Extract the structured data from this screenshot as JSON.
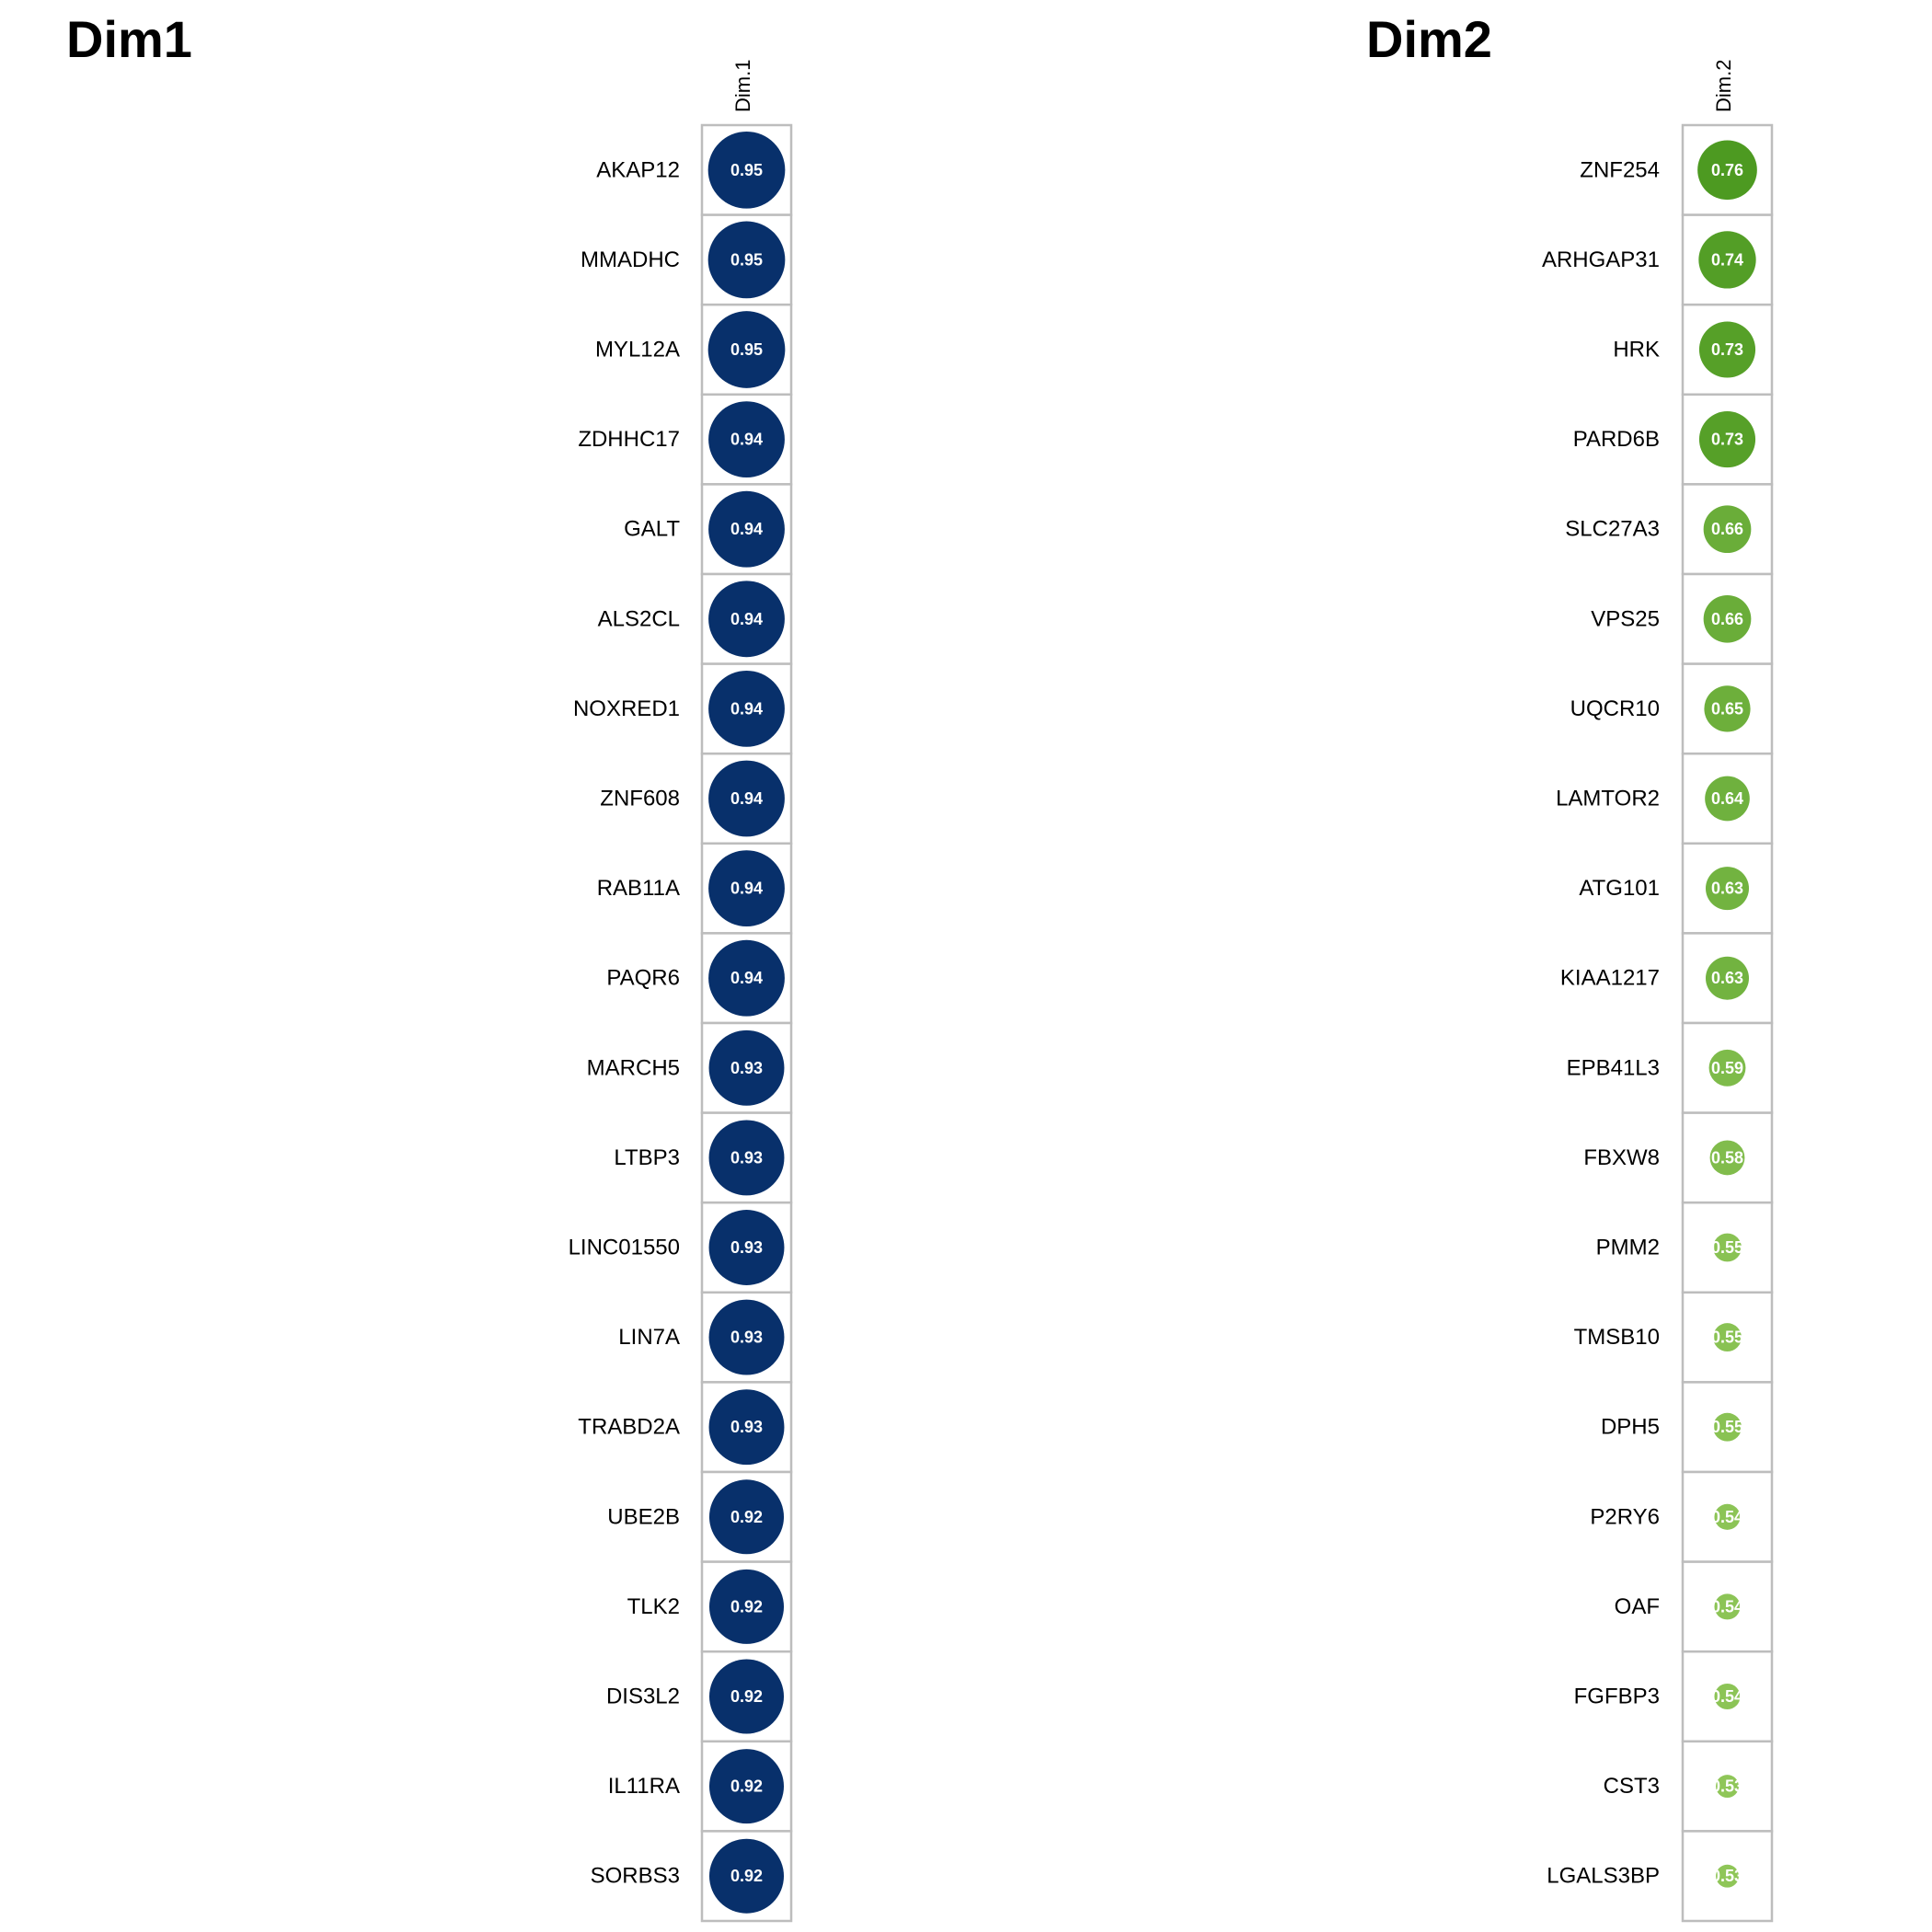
{
  "chart_data": [
    {
      "type": "heatmap",
      "title": "Dim1",
      "column": "Dim.1",
      "color": "#08306b",
      "size_range": [
        0.5,
        1.0
      ],
      "rows": [
        "AKAP12",
        "MMADHC",
        "MYL12A",
        "ZDHHC17",
        "GALT",
        "ALS2CL",
        "NOXRED1",
        "ZNF608",
        "RAB11A",
        "PAQR6",
        "MARCH5",
        "LTBP3",
        "LINC01550",
        "LIN7A",
        "TRABD2A",
        "UBE2B",
        "TLK2",
        "DIS3L2",
        "IL11RA",
        "SORBS3"
      ],
      "values": [
        0.95,
        0.95,
        0.95,
        0.94,
        0.94,
        0.94,
        0.94,
        0.94,
        0.94,
        0.94,
        0.93,
        0.93,
        0.93,
        0.93,
        0.93,
        0.92,
        0.92,
        0.92,
        0.92,
        0.92
      ],
      "labels": [
        "0.95",
        "0.95",
        "0.95",
        "0.94",
        "0.94",
        "0.94",
        "0.94",
        "0.94",
        "0.94",
        "0.94",
        "0.93",
        "0.93",
        "0.93",
        "0.93",
        "0.93",
        "0.92",
        "0.92",
        "0.92",
        "0.92",
        "0.92"
      ]
    },
    {
      "type": "heatmap",
      "title": "Dim2",
      "column": "Dim.2",
      "color_high": "#4d9a21",
      "color_low": "#8fc658",
      "size_range": [
        0.5,
        1.0
      ],
      "rows": [
        "ZNF254",
        "ARHGAP31",
        "HRK",
        "PARD6B",
        "SLC27A3",
        "VPS25",
        "UQCR10",
        "LAMTOR2",
        "ATG101",
        "KIAA1217",
        "EPB41L3",
        "FBXW8",
        "PMM2",
        "TMSB10",
        "DPH5",
        "P2RY6",
        "OAF",
        "FGFBP3",
        "CST3",
        "LGALS3BP"
      ],
      "values": [
        0.76,
        0.74,
        0.73,
        0.73,
        0.66,
        0.66,
        0.65,
        0.64,
        0.63,
        0.63,
        0.59,
        0.58,
        0.55,
        0.55,
        0.55,
        0.54,
        0.54,
        0.54,
        0.53,
        0.53
      ],
      "labels": [
        "0.76",
        "0.74",
        "0.73",
        "0.73",
        "0.66",
        "0.66",
        "0.65",
        "0.64",
        "0.63",
        "0.63",
        "0.59",
        "0.58",
        "0.55",
        "0.55",
        "0.55",
        "0.54",
        "0.54",
        "0.54",
        "0.53",
        "0.53"
      ]
    }
  ]
}
